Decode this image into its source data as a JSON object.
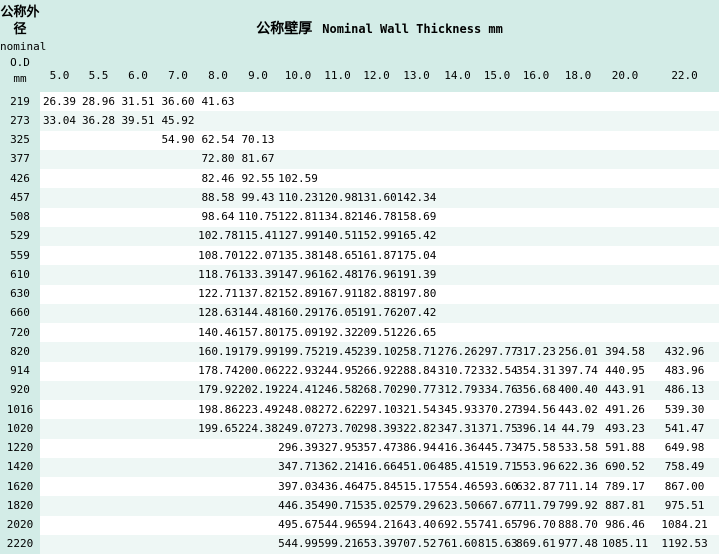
{
  "header": {
    "od_label_lines": [
      "公称外",
      "径",
      "nominal",
      "O.D",
      "mm"
    ],
    "title_cn": "公称壁厚",
    "title_en": "Nominal Wall Thickness mm"
  },
  "columns": [
    "5.0",
    "5.5",
    "6.0",
    "7.0",
    "8.0",
    "9.0",
    "10.0",
    "11.0",
    "12.0",
    "13.0",
    "14.0",
    "15.0",
    "16.0",
    "18.0",
    "20.0",
    "22.0"
  ],
  "rows": [
    {
      "od": "219",
      "values": [
        "26.39",
        "28.96",
        "31.51",
        "36.60",
        "41.63",
        "",
        "",
        "",
        "",
        "",
        "",
        "",
        "",
        "",
        "",
        ""
      ]
    },
    {
      "od": "273",
      "values": [
        "33.04",
        "36.28",
        "39.51",
        "45.92",
        "",
        "",
        "",
        "",
        "",
        "",
        "",
        "",
        "",
        "",
        "",
        ""
      ]
    },
    {
      "od": "325",
      "values": [
        "",
        "",
        "",
        "54.90",
        "62.54",
        "70.13",
        "",
        "",
        "",
        "",
        "",
        "",
        "",
        "",
        "",
        ""
      ]
    },
    {
      "od": "377",
      "values": [
        "",
        "",
        "",
        "",
        "72.80",
        "81.67",
        "",
        "",
        "",
        "",
        "",
        "",
        "",
        "",
        "",
        ""
      ]
    },
    {
      "od": "426",
      "values": [
        "",
        "",
        "",
        "",
        "82.46",
        "92.55",
        "102.59",
        "",
        "",
        "",
        "",
        "",
        "",
        "",
        "",
        ""
      ]
    },
    {
      "od": "457",
      "values": [
        "",
        "",
        "",
        "",
        "88.58",
        "99.43",
        "110.23",
        "120.98",
        "131.60",
        "142.34",
        "",
        "",
        "",
        "",
        "",
        ""
      ]
    },
    {
      "od": "508",
      "values": [
        "",
        "",
        "",
        "",
        "98.64",
        "110.75",
        "122.81",
        "134.82",
        "146.78",
        "158.69",
        "",
        "",
        "",
        "",
        "",
        ""
      ]
    },
    {
      "od": "529",
      "values": [
        "",
        "",
        "",
        "",
        "102.78",
        "115.41",
        "127.99",
        "140.51",
        "152.99",
        "165.42",
        "",
        "",
        "",
        "",
        "",
        ""
      ]
    },
    {
      "od": "559",
      "values": [
        "",
        "",
        "",
        "",
        "108.70",
        "122.07",
        "135.38",
        "148.65",
        "161.87",
        "175.04",
        "",
        "",
        "",
        "",
        "",
        ""
      ]
    },
    {
      "od": "610",
      "values": [
        "",
        "",
        "",
        "",
        "118.76",
        "133.39",
        "147.96",
        "162.48",
        "176.96",
        "191.39",
        "",
        "",
        "",
        "",
        "",
        ""
      ]
    },
    {
      "od": "630",
      "values": [
        "",
        "",
        "",
        "",
        "122.71",
        "137.82",
        "152.89",
        "167.91",
        "182.88",
        "197.80",
        "",
        "",
        "",
        "",
        "",
        ""
      ]
    },
    {
      "od": "660",
      "values": [
        "",
        "",
        "",
        "",
        "128.63",
        "144.48",
        "160.29",
        "176.05",
        "191.76",
        "207.42",
        "",
        "",
        "",
        "",
        "",
        ""
      ]
    },
    {
      "od": "720",
      "values": [
        "",
        "",
        "",
        "",
        "140.46",
        "157.80",
        "175.09",
        "192.32",
        "209.51",
        "226.65",
        "",
        "",
        "",
        "",
        "",
        ""
      ]
    },
    {
      "od": "820",
      "values": [
        "",
        "",
        "",
        "",
        "160.19",
        "179.99",
        "199.75",
        "219.45",
        "239.10",
        "258.71",
        "276.26",
        "297.77",
        "317.23",
        "256.01",
        "394.58",
        "432.96"
      ]
    },
    {
      "od": "914",
      "values": [
        "",
        "",
        "",
        "",
        "178.74",
        "200.06",
        "222.93",
        "244.95",
        "266.92",
        "288.84",
        "310.72",
        "332.54",
        "354.31",
        "397.74",
        "440.95",
        "483.96"
      ]
    },
    {
      "od": "920",
      "values": [
        "",
        "",
        "",
        "",
        "179.92",
        "202.19",
        "224.41",
        "246.58",
        "268.70",
        "290.77",
        "312.79",
        "334.76",
        "356.68",
        "400.40",
        "443.91",
        "486.13"
      ]
    },
    {
      "od": "1016",
      "values": [
        "",
        "",
        "",
        "",
        "198.86",
        "223.49",
        "248.08",
        "272.62",
        "297.10",
        "321.54",
        "345.93",
        "370.27",
        "394.56",
        "443.02",
        "491.26",
        "539.30"
      ]
    },
    {
      "od": "1020",
      "values": [
        "",
        "",
        "",
        "",
        "199.65",
        "224.38",
        "249.07",
        "273.70",
        "298.39",
        "322.82",
        "347.31",
        "371.75",
        "396.14",
        "44.79",
        "493.23",
        "541.47"
      ]
    },
    {
      "od": "1220",
      "values": [
        "",
        "",
        "",
        "",
        "",
        "",
        "296.39",
        "327.95",
        "357.47",
        "386.94",
        "416.36",
        "445.73",
        "475.58",
        "533.58",
        "591.88",
        "649.98"
      ]
    },
    {
      "od": "1420",
      "values": [
        "",
        "",
        "",
        "",
        "",
        "",
        "347.71",
        "362.21",
        "416.66",
        "451.06",
        "485.41",
        "519.71",
        "553.96",
        "622.36",
        "690.52",
        "758.49"
      ]
    },
    {
      "od": "1620",
      "values": [
        "",
        "",
        "",
        "",
        "",
        "",
        "397.03",
        "436.46",
        "475.84",
        "515.17",
        "554.46",
        "593.60",
        "632.87",
        "711.14",
        "789.17",
        "867.00"
      ]
    },
    {
      "od": "1820",
      "values": [
        "",
        "",
        "",
        "",
        "",
        "",
        "446.35",
        "490.71",
        "535.02",
        "579.29",
        "623.50",
        "667.67",
        "711.79",
        "799.92",
        "887.81",
        "975.51"
      ]
    },
    {
      "od": "2020",
      "values": [
        "",
        "",
        "",
        "",
        "",
        "",
        "495.67",
        "544.96",
        "594.21",
        "643.40",
        "692.55",
        "741.65",
        "796.70",
        "888.70",
        "986.46",
        "1084.21"
      ]
    },
    {
      "od": "2220",
      "values": [
        "",
        "",
        "",
        "",
        "",
        "",
        "544.99",
        "599.21",
        "653.39",
        "707.52",
        "761.60",
        "815.63",
        "869.61",
        "977.48",
        "1085.11",
        "1192.53"
      ]
    }
  ],
  "colors": {
    "header_bg": "#d3ece7",
    "stripe_bg": "#eef7f5",
    "text": "#000000"
  }
}
